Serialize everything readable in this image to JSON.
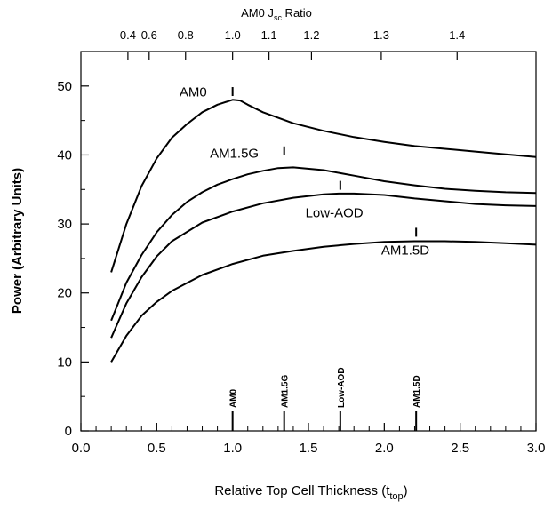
{
  "chart_data": {
    "type": "line",
    "top_axis": {
      "title_main": "AM0 J",
      "title_sub": "sc",
      "title_tail": " Ratio",
      "ticks": [
        {
          "label": "0.4",
          "x": 0.31
        },
        {
          "label": "0.6",
          "x": 0.45
        },
        {
          "label": "0.8",
          "x": 0.69
        },
        {
          "label": "1.0",
          "x": 1.0
        },
        {
          "label": "1.1",
          "x": 1.24
        },
        {
          "label": "1.2",
          "x": 1.52
        },
        {
          "label": "1.3",
          "x": 1.98
        },
        {
          "label": "1.4",
          "x": 2.48
        }
      ]
    },
    "xlabel_main": "Relative Top Cell Thickness (t",
    "xlabel_sub": "top",
    "xlabel_tail": ")",
    "ylabel": "Power (Arbitrary Units)",
    "xlim": [
      0,
      3.0
    ],
    "ylim": [
      0,
      55
    ],
    "x_ticks": [
      "0.0",
      "0.5",
      "1.0",
      "1.5",
      "2.0",
      "2.5",
      "3.0"
    ],
    "y_ticks": [
      "0",
      "10",
      "20",
      "30",
      "40",
      "50"
    ],
    "grid": false,
    "series": [
      {
        "name": "AM0",
        "x": [
          0.2,
          0.3,
          0.4,
          0.5,
          0.6,
          0.7,
          0.8,
          0.9,
          1.0,
          1.05,
          1.1,
          1.2,
          1.4,
          1.6,
          1.8,
          2.0,
          2.2,
          2.4,
          2.6,
          2.8,
          3.0
        ],
        "y": [
          23,
          30,
          35.5,
          39.5,
          42.5,
          44.5,
          46.2,
          47.3,
          48.0,
          47.9,
          47.3,
          46.2,
          44.6,
          43.5,
          42.6,
          41.9,
          41.3,
          40.9,
          40.5,
          40.1,
          39.7
        ],
        "label_pos": [
          0.65,
          48.5
        ],
        "peak_marker": [
          1.0,
          49.2
        ]
      },
      {
        "name": "AM1.5G",
        "x": [
          0.2,
          0.3,
          0.4,
          0.5,
          0.6,
          0.7,
          0.8,
          0.9,
          1.0,
          1.1,
          1.2,
          1.3,
          1.4,
          1.6,
          1.8,
          2.0,
          2.2,
          2.4,
          2.6,
          2.8,
          3.0
        ],
        "y": [
          16,
          21.5,
          25.5,
          28.8,
          31.3,
          33.2,
          34.6,
          35.7,
          36.5,
          37.2,
          37.7,
          38.1,
          38.2,
          37.8,
          37.0,
          36.2,
          35.6,
          35.1,
          34.8,
          34.6,
          34.5
        ],
        "label_pos": [
          0.85,
          39.6
        ],
        "peak_marker": [
          1.34,
          40.6
        ]
      },
      {
        "name": "Low-AOD",
        "x": [
          0.2,
          0.3,
          0.4,
          0.5,
          0.6,
          0.8,
          1.0,
          1.2,
          1.4,
          1.6,
          1.7,
          1.8,
          2.0,
          2.2,
          2.4,
          2.6,
          2.8,
          3.0
        ],
        "y": [
          13.5,
          18.5,
          22.3,
          25.3,
          27.5,
          30.2,
          31.8,
          33.0,
          33.8,
          34.3,
          34.4,
          34.4,
          34.2,
          33.7,
          33.3,
          32.9,
          32.7,
          32.6
        ],
        "label_pos": [
          1.48,
          31.0
        ],
        "peak_marker": [
          1.71,
          35.6
        ]
      },
      {
        "name": "AM1.5D",
        "x": [
          0.2,
          0.3,
          0.4,
          0.5,
          0.6,
          0.8,
          1.0,
          1.2,
          1.4,
          1.6,
          1.8,
          2.0,
          2.2,
          2.4,
          2.6,
          2.8,
          3.0
        ],
        "y": [
          10,
          13.8,
          16.7,
          18.7,
          20.3,
          22.6,
          24.2,
          25.4,
          26.1,
          26.7,
          27.1,
          27.4,
          27.5,
          27.5,
          27.4,
          27.2,
          27.0
        ],
        "label_pos": [
          1.98,
          25.6
        ],
        "peak_marker": [
          2.21,
          28.8
        ]
      }
    ],
    "bottom_markers": [
      {
        "label": "AM0",
        "x": 1.0
      },
      {
        "label": "AM1.5G",
        "x": 1.34
      },
      {
        "label": "Low-AOD",
        "x": 1.71
      },
      {
        "label": "AM1.5D",
        "x": 2.21
      }
    ]
  }
}
